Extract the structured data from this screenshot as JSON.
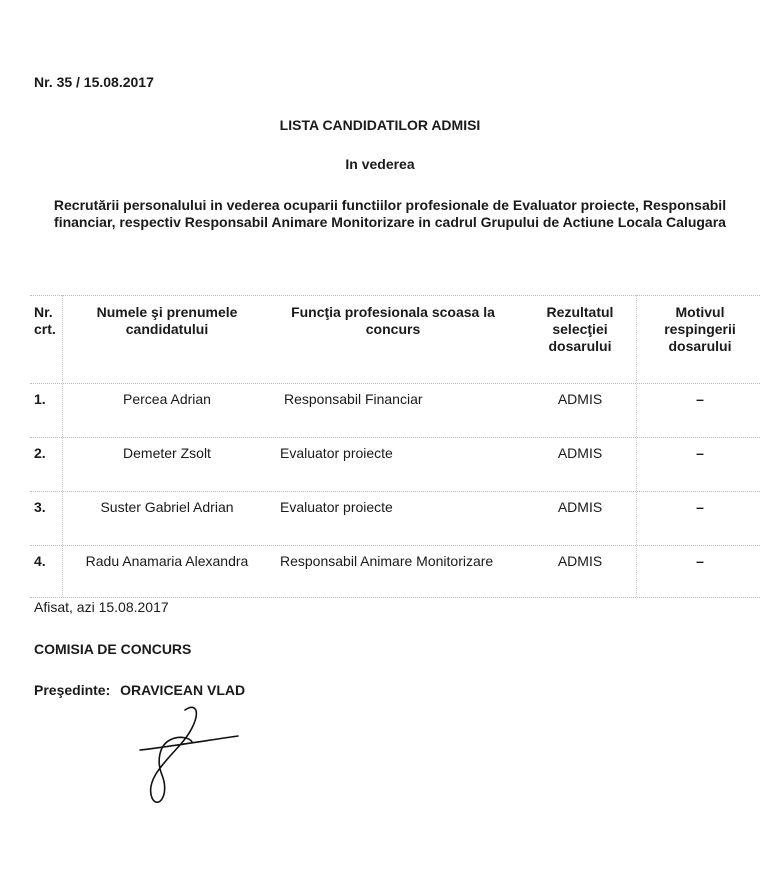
{
  "header": {
    "number": "Nr. 35 / 15.08.2017",
    "title": "LISTA CANDIDATILOR ADMISI",
    "subtitle": "In vederea",
    "description_line1": "Recrutării  personalului in vederea ocuparii functiilor  profesionale  de Evaluator proiecte, Responsabil",
    "description_line2": "financiar, respectiv Responsabil Animare Monitorizare in cadrul Grupului de Actiune Locala Calugara"
  },
  "table": {
    "columns": [
      {
        "line1": "Nr.",
        "line2": "crt.",
        "line3": ""
      },
      {
        "line1": "Numele şi prenumele",
        "line2": "candidatului",
        "line3": ""
      },
      {
        "line1": "Funcţia profesionala scoasa la",
        "line2": "concurs",
        "line3": ""
      },
      {
        "line1": "Rezultatul",
        "line2": "selecţiei",
        "line3": "dosarului"
      },
      {
        "line1": "Motivul",
        "line2": "respingerii",
        "line3": "dosarului"
      }
    ],
    "rows": [
      {
        "nr": "1.",
        "name": "Percea Adrian",
        "function": "Responsabil Financiar",
        "result": "ADMIS",
        "reason": "–"
      },
      {
        "nr": "2.",
        "name": "Demeter Zsolt",
        "function": "Evaluator proiecte",
        "result": "ADMIS",
        "reason": "–"
      },
      {
        "nr": "3.",
        "name": "Suster Gabriel Adrian",
        "function": "Evaluator proiecte",
        "result": "ADMIS",
        "reason": "–"
      },
      {
        "nr": "4.",
        "name": "Radu Anamaria Alexandra",
        "function": "Responsabil Animare Monitorizare",
        "result": "ADMIS",
        "reason": "–"
      }
    ]
  },
  "footer": {
    "posted": "Afisat, azi 15.08.2017",
    "committee": "COMISIA DE CONCURS",
    "president_label": "Preşedinte:",
    "president_name": "ORAVICEAN VLAD"
  }
}
